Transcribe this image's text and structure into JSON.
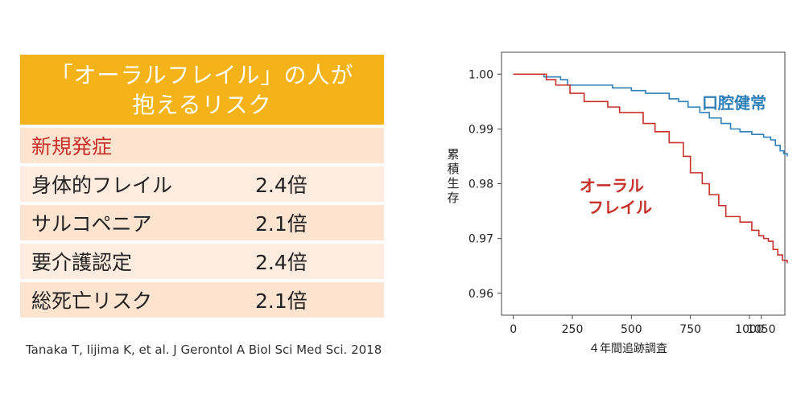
{
  "risk_table": {
    "header_line1": "「オーラルフレイル」の人が",
    "header_line2": "抱えるリスク",
    "section_label": "新規発症",
    "rows": [
      {
        "label": "身体的フレイル",
        "value": "2.4倍"
      },
      {
        "label": "サルコペニア",
        "value": "2.1倍"
      },
      {
        "label": "要介護認定",
        "value": "2.4倍"
      },
      {
        "label": "総死亡リスク",
        "value": "2.1倍"
      }
    ]
  },
  "citation": "Tanaka T, Iijima K, et al. J Gerontol A Biol Sci Med Sci. 2018",
  "colors": {
    "header_bg": "#f5b31a",
    "row_bg": "#fce4d0",
    "section_text": "#c8302a",
    "healthy_line": "#2f7fb8",
    "frail_line": "#c8302a"
  },
  "chart_data": {
    "type": "line",
    "xlabel": "４年間追跡調査",
    "ylabel": "累積生存",
    "xlim": [
      -50,
      1150
    ],
    "ylim": [
      0.956,
      1.004
    ],
    "xticks": [
      0,
      250,
      500,
      750,
      1000,
      1050
    ],
    "yticks": [
      1.0,
      0.99,
      0.98,
      0.97,
      0.96
    ],
    "ytick_labels": [
      "1.00",
      "0.99",
      "0.98",
      "0.97",
      "0.96"
    ],
    "grid": false,
    "series": [
      {
        "name": "口腔健常",
        "color": "#2f7fb8",
        "step": true,
        "x": [
          0,
          110,
          130,
          200,
          230,
          330,
          420,
          500,
          560,
          600,
          660,
          700,
          740,
          790,
          830,
          880,
          920,
          960,
          1010,
          1060,
          1090,
          1110,
          1130,
          1145,
          1160
        ],
        "y": [
          1.0,
          1.0,
          0.9995,
          0.999,
          0.998,
          0.998,
          0.9975,
          0.997,
          0.9965,
          0.9965,
          0.9955,
          0.995,
          0.994,
          0.993,
          0.992,
          0.991,
          0.99,
          0.9895,
          0.989,
          0.9885,
          0.988,
          0.987,
          0.986,
          0.9855,
          0.985
        ]
      },
      {
        "name": "オーラルフレイル",
        "color": "#c8302a",
        "step": true,
        "x": [
          0,
          110,
          140,
          180,
          240,
          300,
          400,
          450,
          550,
          600,
          660,
          720,
          750,
          800,
          830,
          870,
          900,
          960,
          1010,
          1040,
          1060,
          1080,
          1100,
          1120,
          1140,
          1160
        ],
        "y": [
          1.0,
          1.0,
          0.999,
          0.998,
          0.9965,
          0.995,
          0.994,
          0.993,
          0.991,
          0.9895,
          0.9875,
          0.985,
          0.982,
          0.98,
          0.978,
          0.976,
          0.974,
          0.973,
          0.9715,
          0.9705,
          0.97,
          0.9695,
          0.968,
          0.967,
          0.966,
          0.9655
        ]
      }
    ]
  }
}
